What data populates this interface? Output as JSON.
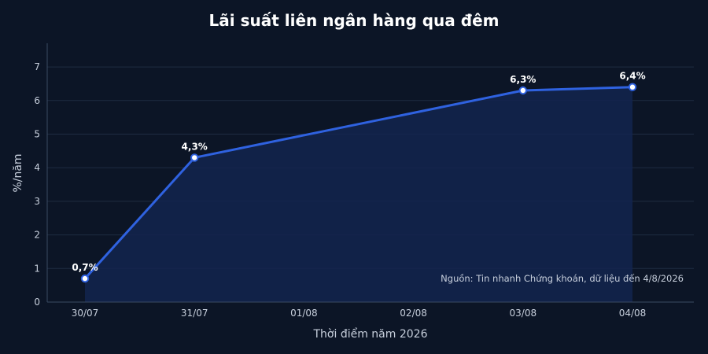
{
  "chart_data": {
    "type": "area",
    "title": "Lãi suất liên ngân hàng qua đêm",
    "xlabel": "Thời điểm năm 2026",
    "ylabel": "%/năm",
    "categories": [
      "30/07",
      "31/07",
      "01/08",
      "02/08",
      "03/08",
      "04/08"
    ],
    "points": [
      {
        "x": "30/07",
        "y": 0.7,
        "label": "0,7%"
      },
      {
        "x": "31/07",
        "y": 4.3,
        "label": "4,3%"
      },
      {
        "x": "03/08",
        "y": 6.3,
        "label": "6,3%"
      },
      {
        "x": "04/08",
        "y": 6.4,
        "label": "6,4%"
      }
    ],
    "yticks": [
      "0",
      "1",
      "2",
      "3",
      "4",
      "5",
      "6",
      "7"
    ],
    "ylim": [
      0,
      7.7
    ],
    "grid": true,
    "note": "Nguồn: Tin nhanh Chứng khoán, dữ liệu đến 4/8/2026",
    "colors": {
      "line": "#2f62e0",
      "area": "#13254f",
      "background": "#0c1526",
      "grid": "#1f2c42"
    }
  }
}
